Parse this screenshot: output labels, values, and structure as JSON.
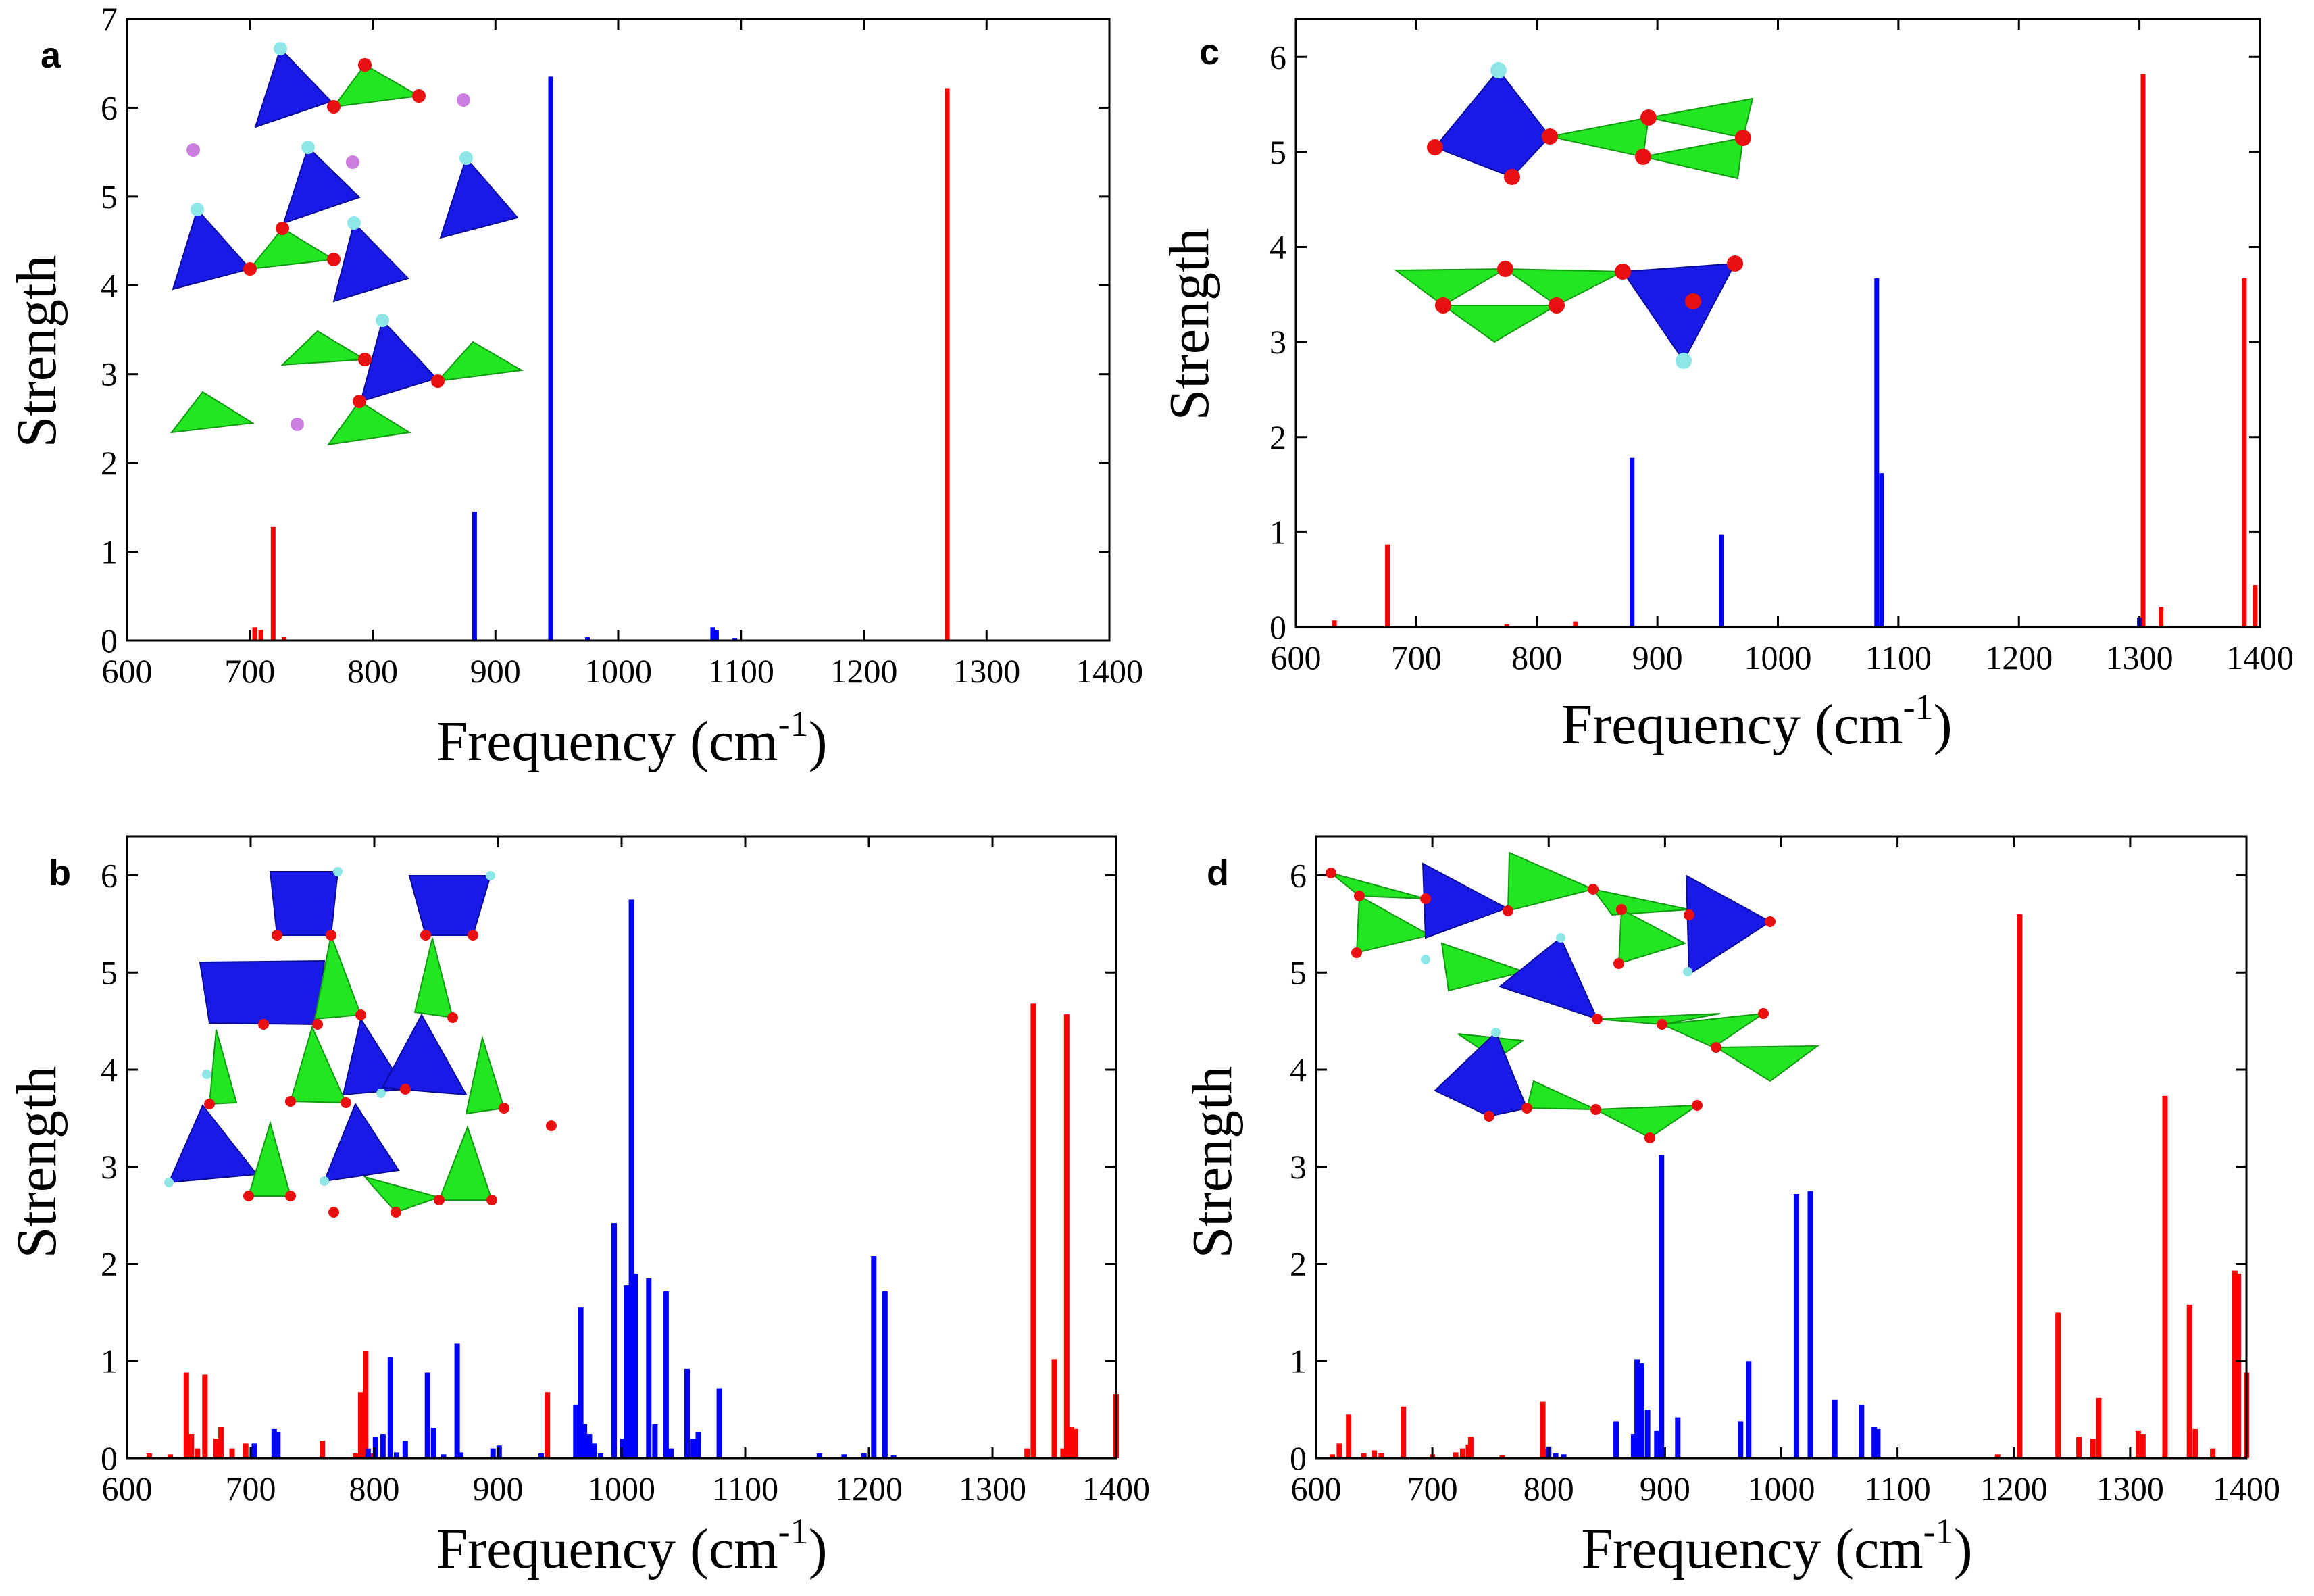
{
  "colors": {
    "tetra_blue": "#1a1ae6",
    "tetra_blue_dark": "#0a0a9a",
    "tri_green": "#22e622",
    "tri_green_dark": "#129a12",
    "oxygen": "#e81010",
    "hydrogen": "#8ee6e6",
    "cation": "#cc7fe0",
    "bar_red": "#ff0000",
    "bar_blue": "#0000ff"
  },
  "chart_data": [
    {
      "panel": "a",
      "type": "bar",
      "xlabel_main": "Frequency (cm",
      "xlabel_sup": "-1",
      "xlabel_end": ")",
      "ylabel": "Strength",
      "xlim": [
        600,
        1400
      ],
      "ylim": [
        0,
        7
      ],
      "xticks": [
        600,
        700,
        800,
        900,
        1000,
        1100,
        1200,
        1300,
        1400
      ],
      "yticks": [
        0,
        1,
        2,
        3,
        4,
        5,
        6,
        7
      ],
      "inset": "structure",
      "series": [
        {
          "name": "red",
          "color": "#ff0000",
          "x": [
            704,
            709,
            719,
            728,
            1268
          ],
          "values": [
            0.15,
            0.12,
            1.28,
            0.04,
            6.22
          ]
        },
        {
          "name": "blue",
          "color": "#0000ff",
          "x": [
            883,
            945,
            975,
            1077,
            1080,
            1095
          ],
          "values": [
            1.45,
            6.35,
            0.04,
            0.15,
            0.12,
            0.03
          ]
        }
      ]
    },
    {
      "panel": "b",
      "type": "bar",
      "xlabel_main": "Frequency (cm",
      "xlabel_sup": "-1",
      "xlabel_end": ")",
      "ylabel": "Strength",
      "xlim": [
        600,
        1400
      ],
      "ylim": [
        0,
        6.4
      ],
      "xticks": [
        600,
        700,
        800,
        900,
        1000,
        1100,
        1200,
        1300,
        1400
      ],
      "yticks": [
        0,
        1,
        2,
        3,
        4,
        5,
        6
      ],
      "inset": "structure",
      "series": [
        {
          "name": "red",
          "color": "#ff0000",
          "x": [
            618,
            635,
            648,
            652,
            657,
            663,
            672,
            676,
            685,
            696,
            758,
            785,
            789,
            793,
            799,
            940,
            1328,
            1333,
            1350,
            1357,
            1360,
            1364,
            1367,
            1400
          ],
          "values": [
            0.05,
            0.04,
            0.88,
            0.25,
            0.1,
            0.86,
            0.2,
            0.32,
            0.1,
            0.15,
            0.18,
            0.05,
            0.68,
            1.1,
            0.05,
            0.68,
            0.1,
            4.68,
            1.02,
            0.1,
            4.57,
            0.32,
            0.3,
            0.66
          ]
        },
        {
          "name": "blue",
          "color": "#0000ff",
          "x": [
            703,
            719,
            722,
            795,
            801,
            807,
            813,
            818,
            825,
            843,
            848,
            856,
            867,
            870,
            896,
            901,
            935,
            963,
            967,
            970,
            974,
            978,
            983,
            994,
            1001,
            1004,
            1008,
            1011,
            1022,
            1027,
            1036,
            1040,
            1053,
            1058,
            1062,
            1079,
            1160,
            1180,
            1196,
            1204,
            1213,
            1220
          ],
          "values": [
            0.15,
            0.3,
            0.27,
            0.1,
            0.22,
            0.25,
            1.04,
            0.06,
            0.18,
            0.88,
            0.31,
            0.04,
            1.18,
            0.06,
            0.1,
            0.13,
            0.05,
            0.55,
            1.55,
            0.35,
            0.25,
            0.15,
            0.05,
            2.42,
            0.2,
            1.78,
            5.75,
            1.9,
            1.85,
            0.35,
            1.72,
            0.1,
            0.92,
            0.2,
            0.27,
            0.72,
            0.05,
            0.04,
            0.05,
            2.08,
            1.72,
            0.03
          ]
        }
      ]
    },
    {
      "panel": "c",
      "type": "bar",
      "xlabel_main": "Frequency (cm",
      "xlabel_sup": "-1",
      "xlabel_end": ")",
      "ylabel": "Strength",
      "xlim": [
        600,
        1400
      ],
      "ylim": [
        0,
        6.4
      ],
      "xticks": [
        600,
        700,
        800,
        900,
        1000,
        1100,
        1200,
        1300,
        1400
      ],
      "yticks": [
        0,
        1,
        2,
        3,
        4,
        5,
        6
      ],
      "inset": "structure",
      "series": [
        {
          "name": "red",
          "color": "#ff0000",
          "x": [
            632,
            676,
            775,
            832,
            1303,
            1318,
            1387,
            1396
          ],
          "values": [
            0.07,
            0.87,
            0.03,
            0.06,
            5.82,
            0.21,
            3.67,
            0.44
          ]
        },
        {
          "name": "blue",
          "color": "#0000ff",
          "x": [
            879,
            953,
            1082,
            1086,
            1300
          ],
          "values": [
            1.78,
            0.97,
            3.67,
            1.62,
            0.1
          ]
        }
      ]
    },
    {
      "panel": "d",
      "type": "bar",
      "xlabel_main": "Frequency (cm",
      "xlabel_sup": "-1",
      "xlabel_end": ")",
      "ylabel": "Strength",
      "xlim": [
        600,
        1400
      ],
      "ylim": [
        0,
        6.4
      ],
      "xticks": [
        600,
        700,
        800,
        900,
        1000,
        1100,
        1200,
        1300,
        1400
      ],
      "yticks": [
        0,
        1,
        2,
        3,
        4,
        5,
        6
      ],
      "inset": "structure",
      "series": [
        {
          "name": "red",
          "color": "#ff0000",
          "x": [
            614,
            620,
            628,
            641,
            650,
            656,
            675,
            700,
            720,
            726,
            731,
            733,
            760,
            795,
            798,
            1186,
            1205,
            1238,
            1256,
            1268,
            1273,
            1307,
            1311,
            1330,
            1351,
            1356,
            1371,
            1390,
            1393,
            1400
          ],
          "values": [
            0.04,
            0.15,
            0.45,
            0.05,
            0.08,
            0.05,
            0.53,
            0.04,
            0.06,
            0.1,
            0.14,
            0.22,
            0.03,
            0.58,
            0.1,
            0.04,
            5.6,
            1.5,
            0.22,
            0.2,
            0.62,
            0.28,
            0.25,
            3.73,
            1.58,
            0.3,
            0.1,
            1.93,
            1.9,
            0.88
          ]
        },
        {
          "name": "blue",
          "color": "#0000ff",
          "x": [
            800,
            806,
            813,
            858,
            873,
            876,
            880,
            885,
            893,
            897,
            911,
            965,
            972,
            1013,
            1025,
            1046,
            1069,
            1080,
            1083
          ],
          "values": [
            0.12,
            0.05,
            0.04,
            0.38,
            0.25,
            1.02,
            0.98,
            0.5,
            0.28,
            3.12,
            0.42,
            0.38,
            1.0,
            2.72,
            2.75,
            0.6,
            0.55,
            0.32,
            0.3
          ]
        }
      ]
    }
  ]
}
